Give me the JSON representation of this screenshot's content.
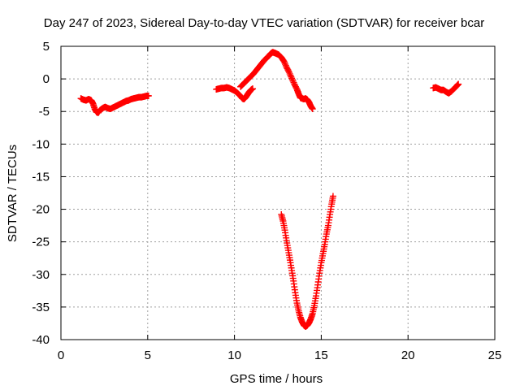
{
  "chart_data": {
    "type": "scatter",
    "title": "Day 247 of 2023, Sidereal Day-to-day VTEC variation (SDTVAR) for receiver bcar",
    "xlabel": "GPS time / hours",
    "ylabel": "SDTVAR / TECUs",
    "xlim": [
      0,
      25
    ],
    "ylim": [
      -40,
      5
    ],
    "xticks": [
      "0",
      "5",
      "10",
      "15",
      "20",
      "25"
    ],
    "yticks": [
      "5",
      "0",
      "-5",
      "-10",
      "-15",
      "-20",
      "-25",
      "-30",
      "-35",
      "-40"
    ],
    "grid": true,
    "marker": "plus",
    "color": "#ff0000",
    "series": [
      {
        "points": [
          [
            1.15,
            -3.0
          ],
          [
            1.3,
            -3.2
          ],
          [
            1.45,
            -3.3
          ],
          [
            1.6,
            -3.1
          ],
          [
            1.75,
            -3.3
          ],
          [
            1.85,
            -3.8
          ],
          [
            1.95,
            -4.6
          ],
          [
            2.05,
            -5.1
          ],
          [
            2.15,
            -5.2
          ],
          [
            2.25,
            -4.8
          ],
          [
            2.4,
            -4.5
          ],
          [
            2.55,
            -4.3
          ],
          [
            2.7,
            -4.5
          ],
          [
            2.85,
            -4.6
          ],
          [
            3.0,
            -4.4
          ],
          [
            3.15,
            -4.2
          ],
          [
            3.3,
            -4.0
          ],
          [
            3.45,
            -3.8
          ],
          [
            3.6,
            -3.6
          ],
          [
            3.75,
            -3.4
          ],
          [
            3.9,
            -3.3
          ],
          [
            4.05,
            -3.1
          ],
          [
            4.2,
            -3.0
          ],
          [
            4.35,
            -2.9
          ],
          [
            4.5,
            -2.8
          ],
          [
            4.65,
            -2.8
          ],
          [
            4.8,
            -2.7
          ],
          [
            4.95,
            -2.6
          ],
          [
            5.05,
            -2.6
          ]
        ]
      },
      {
        "points": [
          [
            8.95,
            -1.6
          ],
          [
            9.1,
            -1.5
          ],
          [
            9.25,
            -1.4
          ],
          [
            9.4,
            -1.4
          ],
          [
            9.55,
            -1.3
          ],
          [
            9.7,
            -1.4
          ],
          [
            9.85,
            -1.6
          ],
          [
            10.0,
            -1.8
          ],
          [
            10.15,
            -2.1
          ],
          [
            10.3,
            -2.5
          ],
          [
            10.45,
            -3.0
          ],
          [
            10.55,
            -3.1
          ],
          [
            10.65,
            -2.8
          ],
          [
            10.75,
            -2.4
          ],
          [
            10.85,
            -2.0
          ],
          [
            10.95,
            -1.7
          ],
          [
            11.05,
            -1.5
          ]
        ]
      },
      {
        "points": [
          [
            10.35,
            -1.2
          ],
          [
            10.5,
            -0.8
          ],
          [
            10.65,
            -0.4
          ],
          [
            10.8,
            0.0
          ],
          [
            10.95,
            0.4
          ],
          [
            11.1,
            0.8
          ],
          [
            11.25,
            1.3
          ],
          [
            11.4,
            1.8
          ],
          [
            11.55,
            2.3
          ],
          [
            11.7,
            2.8
          ],
          [
            11.85,
            3.2
          ],
          [
            12.0,
            3.6
          ],
          [
            12.1,
            3.9
          ],
          [
            12.2,
            4.1
          ],
          [
            12.3,
            4.0
          ],
          [
            12.4,
            3.9
          ],
          [
            12.55,
            3.7
          ],
          [
            12.7,
            3.3
          ],
          [
            12.85,
            2.7
          ],
          [
            13.0,
            1.8
          ],
          [
            13.15,
            1.0
          ],
          [
            13.3,
            0.1
          ],
          [
            13.45,
            -0.8
          ],
          [
            13.6,
            -1.6
          ],
          [
            13.7,
            -2.3
          ],
          [
            13.8,
            -2.9
          ],
          [
            13.9,
            -3.0
          ],
          [
            14.0,
            -3.1
          ],
          [
            14.1,
            -3.0
          ],
          [
            14.2,
            -3.2
          ],
          [
            14.3,
            -3.6
          ],
          [
            14.4,
            -4.2
          ],
          [
            14.5,
            -4.6
          ]
        ]
      },
      {
        "points": [
          [
            12.7,
            -20.8
          ],
          [
            12.8,
            -21.8
          ],
          [
            12.9,
            -23.2
          ],
          [
            13.0,
            -24.8
          ],
          [
            13.1,
            -26.3
          ],
          [
            13.2,
            -27.8
          ],
          [
            13.3,
            -29.4
          ],
          [
            13.4,
            -31.0
          ],
          [
            13.5,
            -32.8
          ],
          [
            13.6,
            -34.4
          ],
          [
            13.7,
            -35.6
          ],
          [
            13.8,
            -36.6
          ],
          [
            13.9,
            -37.3
          ],
          [
            14.0,
            -37.8
          ],
          [
            14.1,
            -38.0
          ],
          [
            14.2,
            -37.8
          ],
          [
            14.3,
            -37.4
          ],
          [
            14.4,
            -36.8
          ],
          [
            14.5,
            -36.0
          ],
          [
            14.6,
            -34.8
          ],
          [
            14.7,
            -33.3
          ],
          [
            14.8,
            -31.6
          ],
          [
            14.9,
            -29.8
          ],
          [
            15.0,
            -28.2
          ],
          [
            15.1,
            -26.8
          ],
          [
            15.2,
            -25.4
          ],
          [
            15.3,
            -23.8
          ],
          [
            15.4,
            -22.5
          ],
          [
            15.5,
            -20.8
          ],
          [
            15.6,
            -19.2
          ],
          [
            15.68,
            -18.0
          ]
        ]
      },
      {
        "points": [
          [
            21.45,
            -1.4
          ],
          [
            21.6,
            -1.3
          ],
          [
            21.75,
            -1.5
          ],
          [
            21.9,
            -1.7
          ],
          [
            22.05,
            -1.7
          ],
          [
            22.2,
            -2.0
          ],
          [
            22.35,
            -2.2
          ],
          [
            22.5,
            -1.9
          ],
          [
            22.65,
            -1.5
          ],
          [
            22.8,
            -1.1
          ],
          [
            22.9,
            -0.8
          ]
        ]
      }
    ]
  }
}
